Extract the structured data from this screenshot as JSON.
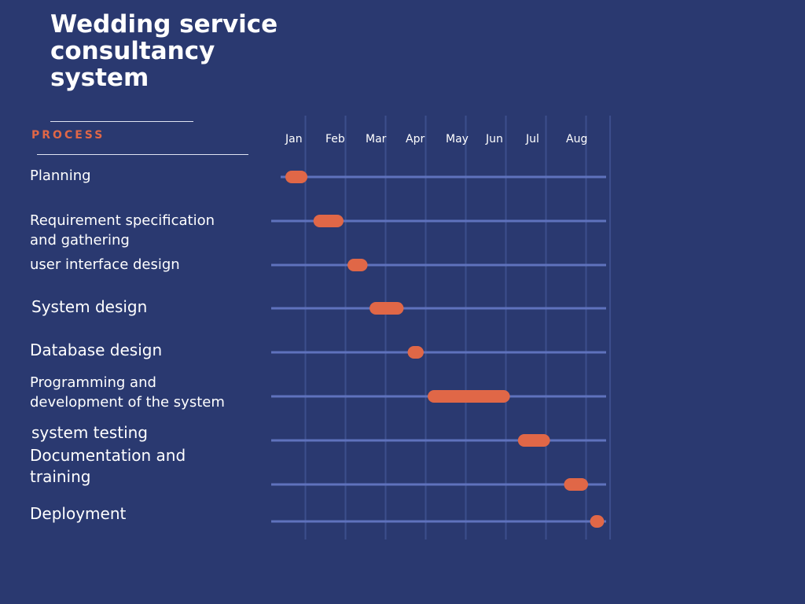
{
  "title": "Wedding service consultancy system",
  "section_label": "PROCESS",
  "colors": {
    "background": "#2a3970",
    "bar": "#e06747",
    "track": "#5f72bd",
    "gridline": "#3c4e8c",
    "text": "#ffffff"
  },
  "chart_data": {
    "type": "gantt",
    "title": "Wedding service consultancy system",
    "categories": [
      "Jan",
      "Feb",
      "Mar",
      "Apr",
      "May",
      "Jun",
      "Jul",
      "Aug"
    ],
    "grid": true,
    "x_unit": "month",
    "tasks": [
      {
        "label": "Planning",
        "start": 0.0,
        "end": 0.55
      },
      {
        "label": "Requirement specification and gathering",
        "start": 0.7,
        "end": 1.45
      },
      {
        "label": "user interface design",
        "start": 1.55,
        "end": 2.05
      },
      {
        "label": "System design",
        "start": 2.1,
        "end": 2.95
      },
      {
        "label": "Database design",
        "start": 3.05,
        "end": 3.45
      },
      {
        "label": "Programming and development of the system",
        "start": 3.55,
        "end": 5.6
      },
      {
        "label": "system testing",
        "start": 5.8,
        "end": 6.6
      },
      {
        "label": "Documentation and training",
        "start": 6.95,
        "end": 7.55
      },
      {
        "label": "Deployment",
        "start": 7.6,
        "end": 7.95
      }
    ]
  }
}
